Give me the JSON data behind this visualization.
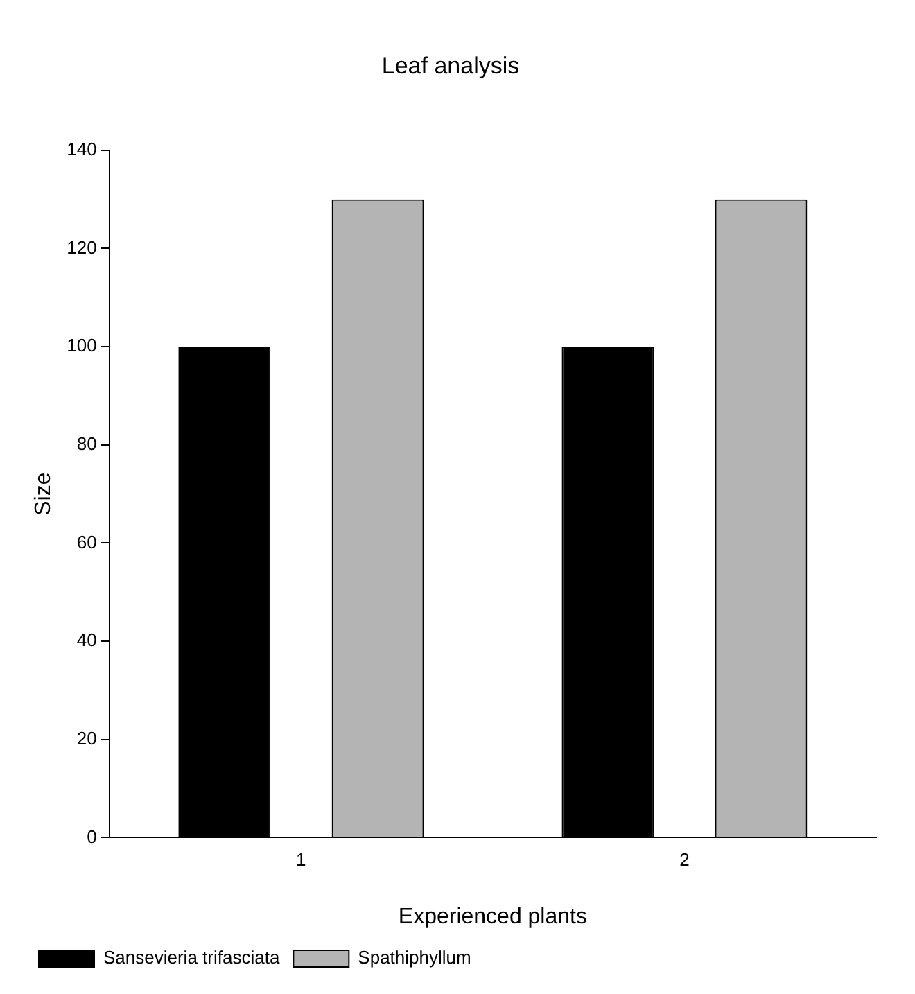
{
  "chart_data": {
    "type": "bar",
    "title": "Leaf analysis",
    "xlabel": "Experienced plants",
    "ylabel": "Size",
    "categories": [
      "1",
      "2"
    ],
    "series": [
      {
        "name": "Sansevieria trifasciata",
        "color": "#000000",
        "values": [
          100,
          100
        ]
      },
      {
        "name": "Spathiphyllum",
        "color": "#b4b4b4",
        "values": [
          130,
          130
        ]
      }
    ],
    "ylim": [
      0,
      140
    ],
    "yticks": [
      0,
      20,
      40,
      60,
      80,
      100,
      120,
      140
    ],
    "grid": false,
    "legend": "bottom left"
  }
}
